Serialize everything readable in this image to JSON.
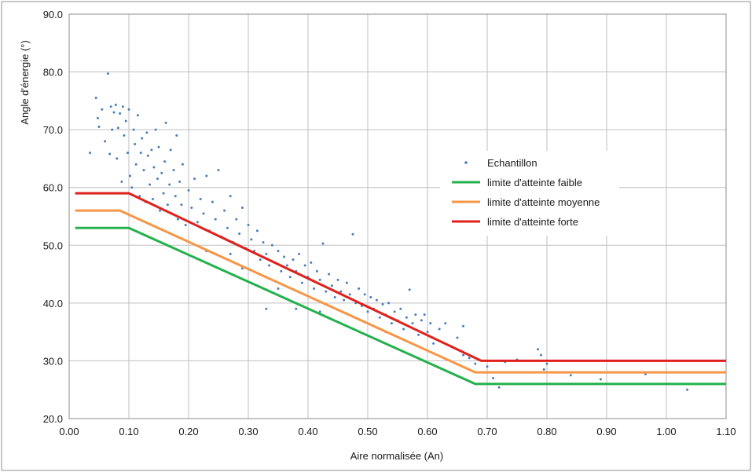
{
  "chart_data": {
    "type": "scatter",
    "xlabel": "Aire normalisée (An)",
    "ylabel": "Angle d'énergie (°)",
    "xlim": [
      0.0,
      1.1
    ],
    "ylim": [
      20.0,
      90.0
    ],
    "x_ticks": [
      0.0,
      0.1,
      0.2,
      0.3,
      0.4,
      0.5,
      0.6,
      0.7,
      0.8,
      0.9,
      1.0,
      1.1
    ],
    "y_ticks": [
      20.0,
      30.0,
      40.0,
      50.0,
      60.0,
      70.0,
      80.0,
      90.0
    ],
    "x_tick_labels": [
      "0.00",
      "0.10",
      "0.20",
      "0.30",
      "0.40",
      "0.50",
      "0.60",
      "0.70",
      "0.80",
      "0.90",
      "1.00",
      "1.10"
    ],
    "y_tick_labels": [
      "20.0",
      "30.0",
      "40.0",
      "50.0",
      "60.0",
      "70.0",
      "80.0",
      "90.0"
    ],
    "grid": true,
    "legend_position": "center-right",
    "series": [
      {
        "name": "Echantillon",
        "kind": "scatter",
        "color": "#4a7ebb",
        "points": [
          [
            0.035,
            66.0
          ],
          [
            0.045,
            75.5
          ],
          [
            0.048,
            72.0
          ],
          [
            0.05,
            70.5
          ],
          [
            0.055,
            73.5
          ],
          [
            0.06,
            68.0
          ],
          [
            0.065,
            79.7
          ],
          [
            0.068,
            65.8
          ],
          [
            0.07,
            74.0
          ],
          [
            0.072,
            70.0
          ],
          [
            0.075,
            73.0
          ],
          [
            0.078,
            74.3
          ],
          [
            0.08,
            65.0
          ],
          [
            0.082,
            70.3
          ],
          [
            0.085,
            72.8
          ],
          [
            0.088,
            61.0
          ],
          [
            0.09,
            74.0
          ],
          [
            0.092,
            69.0
          ],
          [
            0.095,
            71.5
          ],
          [
            0.098,
            66.0
          ],
          [
            0.1,
            73.5
          ],
          [
            0.102,
            62.0
          ],
          [
            0.105,
            60.0
          ],
          [
            0.108,
            70.0
          ],
          [
            0.11,
            67.5
          ],
          [
            0.112,
            64.0
          ],
          [
            0.115,
            72.5
          ],
          [
            0.118,
            58.5
          ],
          [
            0.12,
            66.0
          ],
          [
            0.122,
            68.5
          ],
          [
            0.125,
            63.0
          ],
          [
            0.128,
            57.5
          ],
          [
            0.13,
            69.5
          ],
          [
            0.132,
            65.5
          ],
          [
            0.135,
            60.5
          ],
          [
            0.138,
            66.5
          ],
          [
            0.14,
            58.0
          ],
          [
            0.142,
            63.5
          ],
          [
            0.145,
            70.0
          ],
          [
            0.148,
            61.5
          ],
          [
            0.15,
            67.0
          ],
          [
            0.152,
            56.0
          ],
          [
            0.155,
            62.5
          ],
          [
            0.158,
            59.0
          ],
          [
            0.16,
            64.5
          ],
          [
            0.162,
            71.2
          ],
          [
            0.165,
            57.0
          ],
          [
            0.168,
            60.5
          ],
          [
            0.17,
            66.5
          ],
          [
            0.172,
            55.5
          ],
          [
            0.175,
            63.0
          ],
          [
            0.178,
            58.5
          ],
          [
            0.18,
            69.0
          ],
          [
            0.182,
            54.5
          ],
          [
            0.185,
            61.0
          ],
          [
            0.188,
            57.0
          ],
          [
            0.19,
            64.0
          ],
          [
            0.195,
            53.5
          ],
          [
            0.2,
            59.5
          ],
          [
            0.205,
            56.5
          ],
          [
            0.21,
            61.5
          ],
          [
            0.215,
            54.0
          ],
          [
            0.22,
            58.0
          ],
          [
            0.225,
            55.5
          ],
          [
            0.23,
            62.0
          ],
          [
            0.235,
            52.5
          ],
          [
            0.24,
            57.5
          ],
          [
            0.245,
            54.5
          ],
          [
            0.25,
            63.0
          ],
          [
            0.255,
            51.5
          ],
          [
            0.26,
            56.0
          ],
          [
            0.265,
            53.0
          ],
          [
            0.27,
            58.5
          ],
          [
            0.275,
            50.5
          ],
          [
            0.28,
            54.5
          ],
          [
            0.285,
            52.0
          ],
          [
            0.29,
            56.5
          ],
          [
            0.295,
            49.5
          ],
          [
            0.3,
            53.5
          ],
          [
            0.305,
            51.0
          ],
          [
            0.31,
            49.0
          ],
          [
            0.315,
            52.5
          ],
          [
            0.32,
            47.5
          ],
          [
            0.325,
            50.5
          ],
          [
            0.33,
            48.5
          ],
          [
            0.335,
            46.5
          ],
          [
            0.34,
            50.0
          ],
          [
            0.345,
            47.0
          ],
          [
            0.35,
            49.0
          ],
          [
            0.355,
            45.5
          ],
          [
            0.36,
            48.0
          ],
          [
            0.365,
            46.5
          ],
          [
            0.37,
            44.5
          ],
          [
            0.375,
            47.5
          ],
          [
            0.38,
            45.5
          ],
          [
            0.385,
            48.5
          ],
          [
            0.39,
            43.5
          ],
          [
            0.395,
            46.5
          ],
          [
            0.4,
            44.5
          ],
          [
            0.405,
            47.0
          ],
          [
            0.41,
            42.5
          ],
          [
            0.415,
            45.5
          ],
          [
            0.42,
            44.0
          ],
          [
            0.425,
            50.3
          ],
          [
            0.43,
            42.0
          ],
          [
            0.435,
            45.0
          ],
          [
            0.44,
            43.0
          ],
          [
            0.445,
            41.0
          ],
          [
            0.45,
            44.0
          ],
          [
            0.455,
            42.0
          ],
          [
            0.46,
            40.5
          ],
          [
            0.465,
            43.5
          ],
          [
            0.47,
            41.5
          ],
          [
            0.475,
            51.9
          ],
          [
            0.48,
            40.0
          ],
          [
            0.485,
            42.5
          ],
          [
            0.49,
            39.5
          ],
          [
            0.495,
            41.5
          ],
          [
            0.5,
            38.5
          ],
          [
            0.505,
            41.0
          ],
          [
            0.51,
            39.0
          ],
          [
            0.515,
            40.5
          ],
          [
            0.52,
            37.5
          ],
          [
            0.525,
            39.8
          ],
          [
            0.53,
            38.0
          ],
          [
            0.535,
            40.0
          ],
          [
            0.54,
            36.5
          ],
          [
            0.545,
            38.5
          ],
          [
            0.55,
            37.0
          ],
          [
            0.555,
            39.0
          ],
          [
            0.56,
            35.5
          ],
          [
            0.565,
            37.5
          ],
          [
            0.57,
            42.3
          ],
          [
            0.575,
            36.5
          ],
          [
            0.58,
            38.0
          ],
          [
            0.585,
            34.5
          ],
          [
            0.59,
            37.0
          ],
          [
            0.595,
            38.0
          ],
          [
            0.6,
            35.0
          ],
          [
            0.605,
            36.5
          ],
          [
            0.61,
            33.0
          ],
          [
            0.62,
            35.5
          ],
          [
            0.63,
            36.5
          ],
          [
            0.64,
            32.5
          ],
          [
            0.65,
            34.0
          ],
          [
            0.66,
            31.0
          ],
          [
            0.67,
            30.5
          ],
          [
            0.68,
            29.5
          ],
          [
            0.7,
            29.0
          ],
          [
            0.71,
            27.0
          ],
          [
            0.72,
            25.4
          ],
          [
            0.73,
            29.8
          ],
          [
            0.75,
            30.2
          ],
          [
            0.785,
            32.0
          ],
          [
            0.79,
            31.0
          ],
          [
            0.795,
            28.5
          ],
          [
            0.8,
            29.5
          ],
          [
            0.84,
            27.5
          ],
          [
            0.89,
            26.8
          ],
          [
            0.965,
            27.7
          ],
          [
            1.035,
            25.0
          ],
          [
            0.66,
            36.0
          ],
          [
            0.38,
            39.0
          ],
          [
            0.33,
            39.0
          ],
          [
            0.29,
            46.0
          ],
          [
            0.23,
            49.0
          ],
          [
            0.27,
            48.5
          ],
          [
            0.35,
            42.5
          ],
          [
            0.42,
            38.5
          ],
          [
            0.53,
            35.0
          ]
        ]
      },
      {
        "name": "limite d'atteinte faible",
        "kind": "line",
        "color": "#22b14c",
        "points": [
          [
            0.01,
            53.0
          ],
          [
            0.1,
            53.0
          ],
          [
            0.68,
            26.0
          ],
          [
            1.1,
            26.0
          ]
        ]
      },
      {
        "name": "limite d'atteinte moyenne",
        "kind": "line",
        "color": "#f79646",
        "points": [
          [
            0.01,
            56.0
          ],
          [
            0.085,
            56.0
          ],
          [
            0.68,
            28.0
          ],
          [
            1.1,
            28.0
          ]
        ]
      },
      {
        "name": "limite d'atteinte forte",
        "kind": "line",
        "color": "#e0201b",
        "points": [
          [
            0.01,
            59.0
          ],
          [
            0.1,
            59.0
          ],
          [
            0.69,
            30.0
          ],
          [
            1.1,
            30.0
          ]
        ]
      }
    ]
  }
}
